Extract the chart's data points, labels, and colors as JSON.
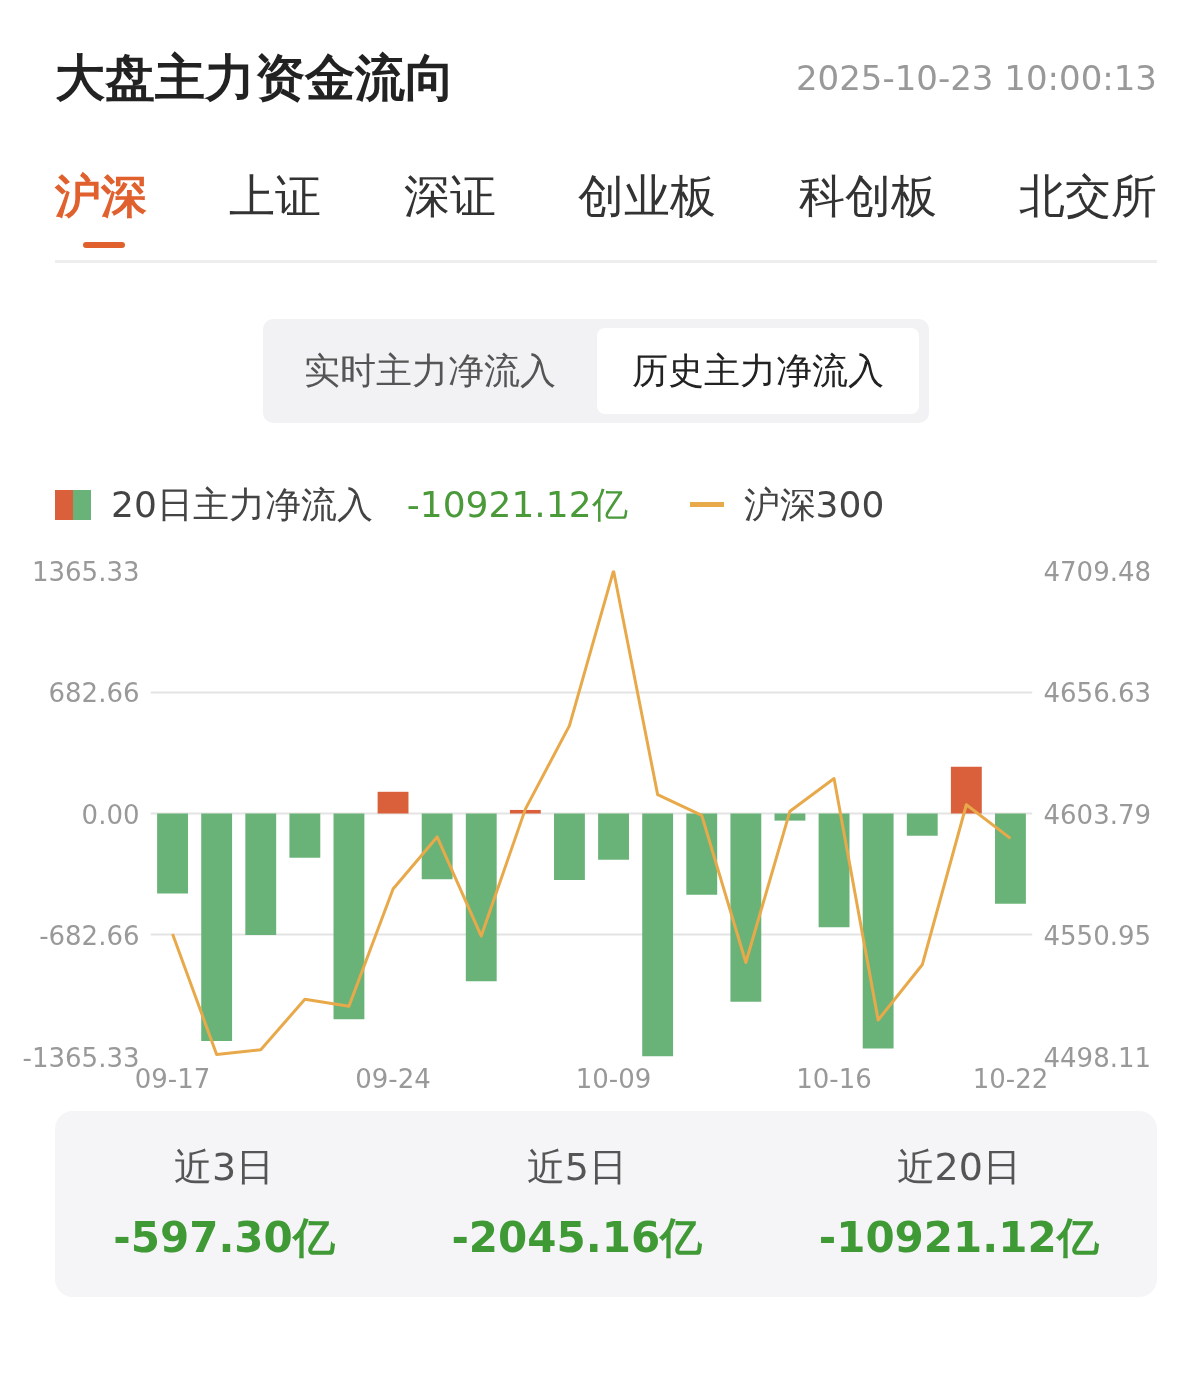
{
  "chart_data": {
    "type": "bar",
    "title": "大盘主力资金流向",
    "subtitle": "2025-10-23 10:00:13",
    "categories": [
      "09-17",
      null,
      null,
      null,
      null,
      "09-24",
      null,
      null,
      null,
      null,
      "10-09",
      null,
      null,
      null,
      null,
      "10-16",
      null,
      null,
      null,
      "10-22"
    ],
    "series": [
      {
        "name": "20日主力净流入",
        "colors": [
          "#6ab378",
          "#6ab378",
          "#6ab378",
          "#6ab378",
          "#6ab378",
          "#d9603b",
          "#6ab378",
          "#6ab378",
          "#d9603b",
          "#6ab378",
          "#6ab378",
          "#6ab378",
          "#6ab378",
          "#6ab378",
          "#6ab378",
          "#6ab378",
          "#6ab378",
          "#6ab378",
          "#d9603b",
          "#6ab378"
        ],
        "values": [
          -450,
          -1278,
          -683,
          -248,
          -1156,
          122,
          -370,
          -943,
          20,
          -374,
          -260,
          -1365,
          -457,
          -1058,
          -40,
          -639,
          -1321,
          -125,
          263,
          -507
        ]
      },
      {
        "name": "沪深300",
        "type": "line",
        "axis": "y2",
        "color": "#e8a94a",
        "values": [
          4551.4,
          4499,
          4501,
          4523,
          4520,
          4571,
          4593.6,
          4550.5,
          4605.7,
          4642,
          4709.4,
          4612,
          4603,
          4539,
          4604.8,
          4619,
          4514,
          4538,
          4607.6,
          4593
        ]
      }
    ],
    "ylim": [
      -1365.33,
      1365.33
    ],
    "yticks": [
      {
        "value": -1365.33,
        "label": "-1365.33"
      },
      {
        "value": -682.66,
        "label": "-682.66"
      },
      {
        "value": 0,
        "label": "0.00"
      },
      {
        "value": 682.66,
        "label": "682.66"
      },
      {
        "value": 1365.33,
        "label": "1365.33"
      }
    ],
    "y2lim": [
      4498.11,
      4709.48
    ],
    "y2ticks": [
      4498.11,
      4550.95,
      4603.79,
      4656.63,
      4709.48
    ],
    "grid": "y",
    "legend": "top left",
    "annotations": [
      "沪深",
      "上证",
      "深证",
      "创业板",
      "科创板",
      "北交所",
      "实时主力净流入",
      "历史主力净流入",
      "-10921.12亿",
      "近3日",
      "-597.30亿",
      "近5日",
      "-2045.16亿",
      "近20日",
      "-10921.12亿"
    ]
  }
}
